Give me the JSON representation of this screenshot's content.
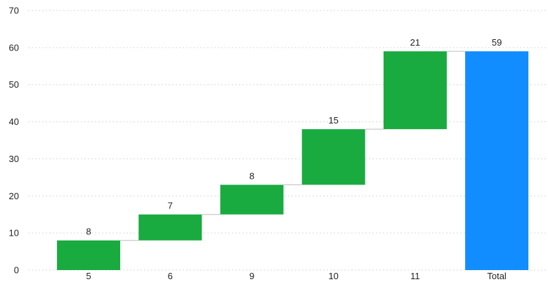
{
  "chart_data": {
    "type": "waterfall",
    "categories": [
      "5",
      "6",
      "9",
      "10",
      "11",
      "Total"
    ],
    "values": [
      8,
      7,
      8,
      15,
      21,
      59
    ],
    "is_total": [
      false,
      false,
      false,
      false,
      false,
      true
    ],
    "data_labels": [
      "8",
      "7",
      "8",
      "15",
      "21",
      "59"
    ],
    "y_ticks": [
      "0",
      "10",
      "20",
      "30",
      "40",
      "50",
      "60",
      "70"
    ],
    "ylim": [
      0,
      70
    ],
    "grid": true,
    "legend": "none",
    "title": "",
    "xlabel": "",
    "ylabel": ""
  },
  "colors": {
    "increase": "#1aab40",
    "total": "#118dff",
    "grid": "#d9d9d9",
    "connector": "#bdbdbd",
    "text": "#222222"
  }
}
